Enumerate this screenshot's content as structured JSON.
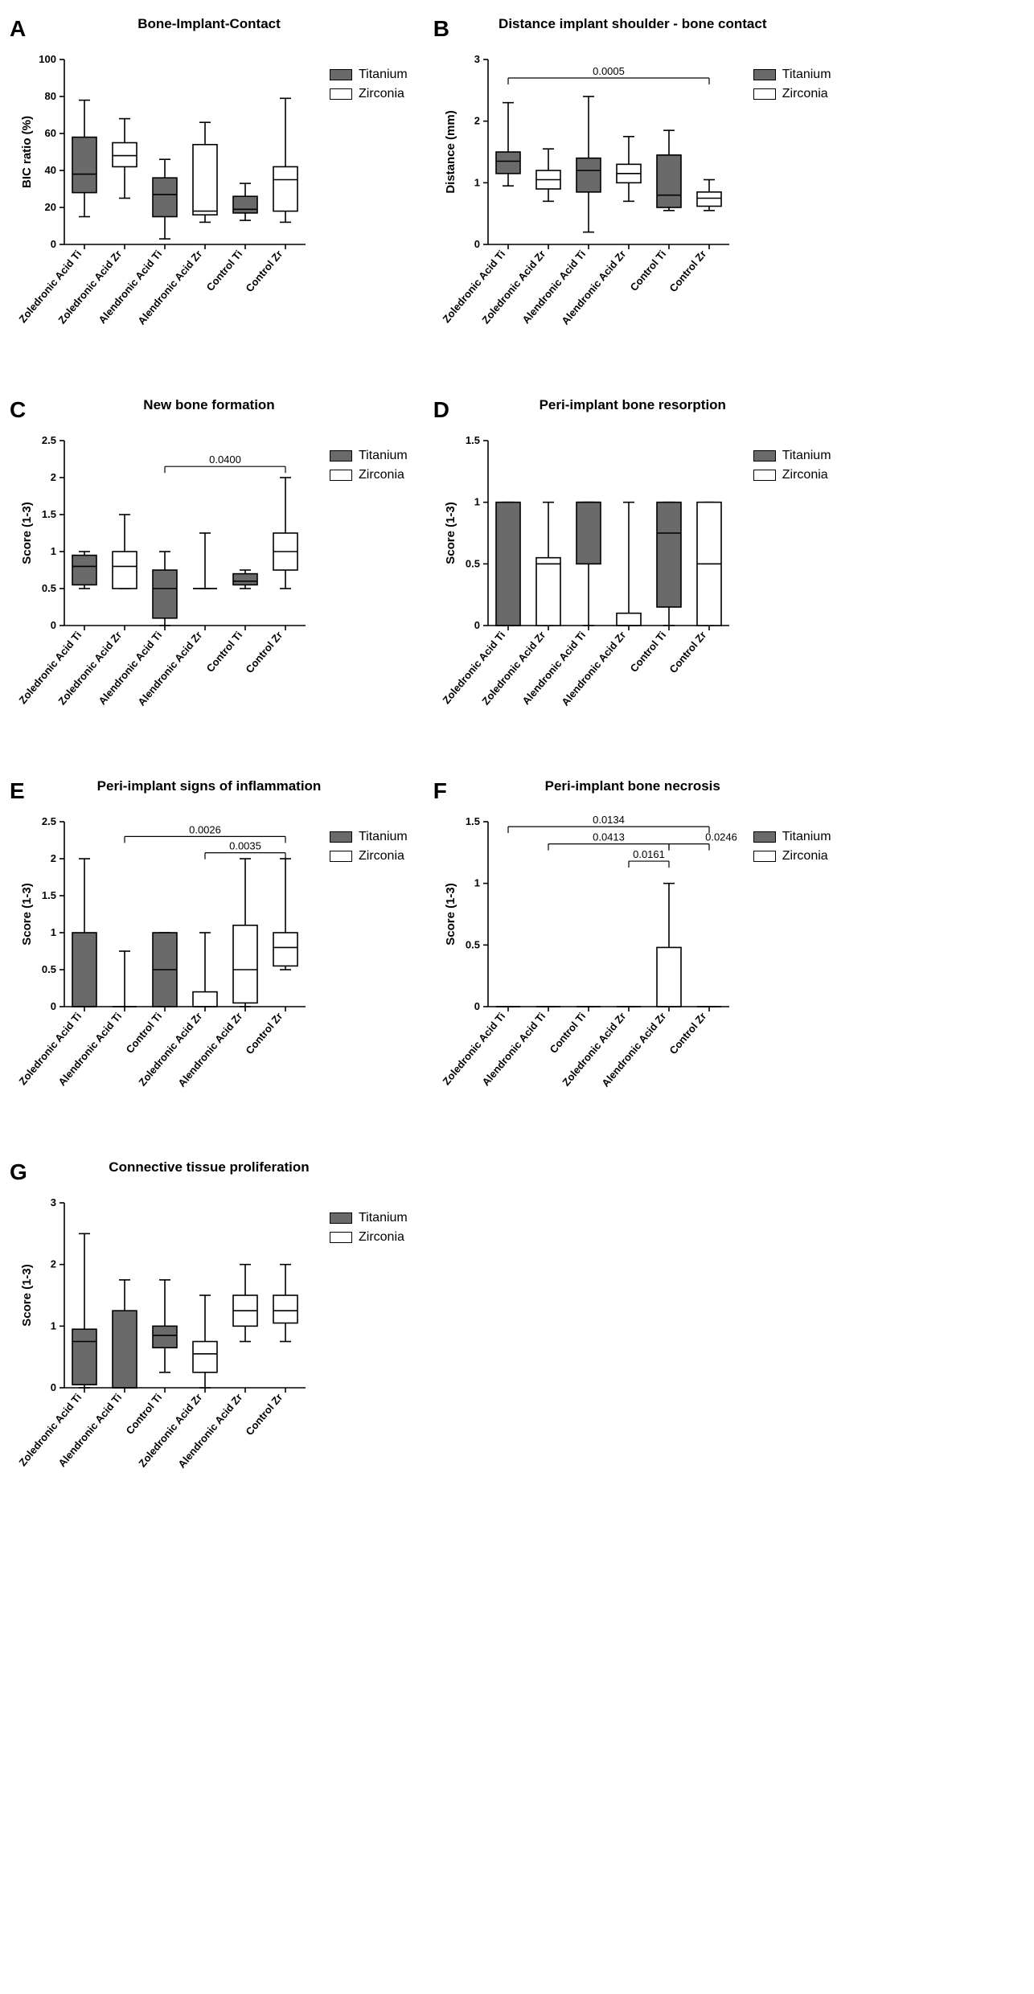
{
  "colors": {
    "titanium": "#6a6a6a",
    "zirconia": "#ffffff",
    "stroke": "#000000",
    "bg": "#ffffff"
  },
  "legend": {
    "titanium": "Titanium",
    "zirconia": "Zirconia"
  },
  "typography": {
    "panel_letter_pt": 28,
    "title_pt": 17,
    "axis_label_pt": 15,
    "tick_pt": 13
  },
  "panels": {
    "A": {
      "letter": "A",
      "title": "Bone-Implant-Contact",
      "ylabel": "BIC ratio (%)",
      "ylim": [
        0,
        100
      ],
      "ytick_step": 20,
      "categories": [
        "Zoledronic Acid Ti",
        "Zoledronic Acid Zr",
        "Alendronic Acid Ti",
        "Alendronic Acid Zr",
        "Control Ti",
        "Control Zr"
      ],
      "fills": [
        "ti",
        "zr",
        "ti",
        "zr",
        "ti",
        "zr"
      ],
      "boxes": [
        {
          "min": 15,
          "q1": 28,
          "median": 38,
          "q3": 58,
          "max": 78
        },
        {
          "min": 25,
          "q1": 42,
          "median": 48,
          "q3": 55,
          "max": 68
        },
        {
          "min": 3,
          "q1": 15,
          "median": 27,
          "q3": 36,
          "max": 46
        },
        {
          "min": 12,
          "q1": 16,
          "median": 18,
          "q3": 54,
          "max": 66
        },
        {
          "min": 13,
          "q1": 17,
          "median": 19,
          "q3": 26,
          "max": 33
        },
        {
          "min": 12,
          "q1": 18,
          "median": 35,
          "q3": 42,
          "max": 79
        }
      ],
      "annotations": []
    },
    "B": {
      "letter": "B",
      "title": "Distance implant shoulder - bone contact",
      "ylabel": "Distance (mm)",
      "ylim": [
        0,
        3
      ],
      "ytick_step": 1,
      "categories": [
        "Zoledronic Acid Ti",
        "Zoledronic Acid Zr",
        "Alendronic Acid Ti",
        "Alendronic Acid Zr",
        "Control Ti",
        "Control Zr"
      ],
      "fills": [
        "ti",
        "zr",
        "ti",
        "zr",
        "ti",
        "zr"
      ],
      "boxes": [
        {
          "min": 0.95,
          "q1": 1.15,
          "median": 1.35,
          "q3": 1.5,
          "max": 2.3
        },
        {
          "min": 0.7,
          "q1": 0.9,
          "median": 1.05,
          "q3": 1.2,
          "max": 1.55
        },
        {
          "min": 0.2,
          "q1": 0.85,
          "median": 1.2,
          "q3": 1.4,
          "max": 2.4
        },
        {
          "min": 0.7,
          "q1": 1.0,
          "median": 1.15,
          "q3": 1.3,
          "max": 1.75
        },
        {
          "min": 0.55,
          "q1": 0.6,
          "median": 0.8,
          "q3": 1.45,
          "max": 1.85
        },
        {
          "min": 0.55,
          "q1": 0.62,
          "median": 0.75,
          "q3": 0.85,
          "max": 1.05
        }
      ],
      "annotations": [
        {
          "i": 0,
          "j": 5,
          "y": 2.7,
          "label": "0.0005"
        }
      ]
    },
    "C": {
      "letter": "C",
      "title": "New bone formation",
      "ylabel": "Score (1-3)",
      "ylim": [
        0,
        2.5
      ],
      "ytick_step": 0.5,
      "categories": [
        "Zoledronic Acid Ti",
        "Zoledronic Acid Zr",
        "Alendronic Acid Ti",
        "Alendronic Acid Zr",
        "Control Ti",
        "Control Zr"
      ],
      "fills": [
        "ti",
        "zr",
        "ti",
        "zr",
        "ti",
        "zr"
      ],
      "boxes": [
        {
          "min": 0.5,
          "q1": 0.55,
          "median": 0.8,
          "q3": 0.95,
          "max": 1.0
        },
        {
          "min": 0.5,
          "q1": 0.5,
          "median": 0.8,
          "q3": 1.0,
          "max": 1.5
        },
        {
          "min": 0.0,
          "q1": 0.1,
          "median": 0.5,
          "q3": 0.75,
          "max": 1.0
        },
        {
          "min": 0.5,
          "q1": 0.5,
          "median": 0.5,
          "q3": 0.5,
          "max": 1.25
        },
        {
          "min": 0.5,
          "q1": 0.55,
          "median": 0.6,
          "q3": 0.7,
          "max": 0.75
        },
        {
          "min": 0.5,
          "q1": 0.75,
          "median": 1.0,
          "q3": 1.25,
          "max": 2.0
        }
      ],
      "annotations": [
        {
          "i": 2,
          "j": 5,
          "y": 2.15,
          "label": "0.0400"
        }
      ]
    },
    "D": {
      "letter": "D",
      "title": "Peri-implant bone resorption",
      "ylabel": "Score (1-3)",
      "ylim": [
        0,
        1.5
      ],
      "ytick_step": 0.5,
      "categories": [
        "Zoledronic Acid Ti",
        "Zoledronic Acid Zr",
        "Alendronic Acid Ti",
        "Alendronic Acid Zr",
        "Control Ti",
        "Control Zr"
      ],
      "fills": [
        "ti",
        "zr",
        "ti",
        "zr",
        "ti",
        "zr"
      ],
      "boxes": [
        {
          "min": 0.0,
          "q1": 0.0,
          "median": 0.0,
          "q3": 1.0,
          "max": 1.0
        },
        {
          "min": 0.0,
          "q1": 0.0,
          "median": 0.5,
          "q3": 0.55,
          "max": 1.0
        },
        {
          "min": 0.0,
          "q1": 0.5,
          "median": 1.0,
          "q3": 1.0,
          "max": 1.0
        },
        {
          "min": 0.0,
          "q1": 0.0,
          "median": 0.0,
          "q3": 0.1,
          "max": 1.0
        },
        {
          "min": 0.0,
          "q1": 0.15,
          "median": 0.75,
          "q3": 1.0,
          "max": 1.0
        },
        {
          "min": 0.0,
          "q1": 0.0,
          "median": 0.5,
          "q3": 1.0,
          "max": 1.0
        }
      ],
      "annotations": []
    },
    "E": {
      "letter": "E",
      "title": "Peri-implant signs of inflammation",
      "ylabel": "Score (1-3)",
      "ylim": [
        0,
        2.5
      ],
      "ytick_step": 0.5,
      "categories": [
        "Zoledronic Acid Ti",
        "Alendronic Acid Ti",
        "Control Ti",
        "Zoledronic Acid Zr",
        "Alendronic Acid Zr",
        "Control Zr"
      ],
      "fills": [
        "ti",
        "ti",
        "ti",
        "zr",
        "zr",
        "zr"
      ],
      "boxes": [
        {
          "min": 0.0,
          "q1": 0.0,
          "median": 0.0,
          "q3": 1.0,
          "max": 2.0
        },
        {
          "min": 0.0,
          "q1": 0.0,
          "median": 0.0,
          "q3": 0.0,
          "max": 0.75
        },
        {
          "min": 0.0,
          "q1": 0.0,
          "median": 0.5,
          "q3": 1.0,
          "max": 1.0
        },
        {
          "min": 0.0,
          "q1": 0.0,
          "median": 0.0,
          "q3": 0.2,
          "max": 1.0
        },
        {
          "min": 0.0,
          "q1": 0.05,
          "median": 0.5,
          "q3": 1.1,
          "max": 2.0
        },
        {
          "min": 0.5,
          "q1": 0.55,
          "median": 0.8,
          "q3": 1.0,
          "max": 2.0
        }
      ],
      "annotations": [
        {
          "i": 1,
          "j": 5,
          "y": 2.3,
          "label": "0.0026"
        },
        {
          "i": 3,
          "j": 5,
          "y": 2.08,
          "label": "0.0035"
        }
      ]
    },
    "F": {
      "letter": "F",
      "title": "Peri-implant bone necrosis",
      "ylabel": "Score (1-3)",
      "ylim": [
        0,
        1.5
      ],
      "ytick_step": 0.5,
      "categories": [
        "Zoledronic Acid Ti",
        "Alendronic Acid Ti",
        "Control Ti",
        "Zoledronic Acid Zr",
        "Alendronic Acid Zr",
        "Control Zr"
      ],
      "fills": [
        "ti",
        "ti",
        "ti",
        "zr",
        "zr",
        "zr"
      ],
      "boxes": [
        {
          "min": 0,
          "q1": 0,
          "median": 0,
          "q3": 0,
          "max": 0
        },
        {
          "min": 0,
          "q1": 0,
          "median": 0,
          "q3": 0,
          "max": 0
        },
        {
          "min": 0,
          "q1": 0,
          "median": 0,
          "q3": 0,
          "max": 0
        },
        {
          "min": 0,
          "q1": 0,
          "median": 0,
          "q3": 0,
          "max": 0
        },
        {
          "min": 0,
          "q1": 0,
          "median": 0,
          "q3": 0.48,
          "max": 1.0
        },
        {
          "min": 0,
          "q1": 0,
          "median": 0,
          "q3": 0,
          "max": 0
        }
      ],
      "annotations": [
        {
          "i": 0,
          "j": 5,
          "y": 1.46,
          "label": "0.0134"
        },
        {
          "i": 1,
          "j": 4,
          "y": 1.32,
          "label": "0.0413"
        },
        {
          "i": 4,
          "j": 5,
          "y": 1.32,
          "label": "0.0246",
          "label_offset_x": 40
        },
        {
          "i": 3,
          "j": 4,
          "y": 1.18,
          "label": "0.0161"
        }
      ]
    },
    "G": {
      "letter": "G",
      "title": "Connective tissue proliferation",
      "ylabel": "Score (1-3)",
      "ylim": [
        0,
        3
      ],
      "ytick_step": 1,
      "categories": [
        "Zoledronic Acid Ti",
        "Alendronic Acid Ti",
        "Control Ti",
        "Zoledronic Acid Zr",
        "Alendronic Acid Zr",
        "Control Zr"
      ],
      "fills": [
        "ti",
        "ti",
        "ti",
        "zr",
        "zr",
        "zr"
      ],
      "boxes": [
        {
          "min": 0.0,
          "q1": 0.05,
          "median": 0.75,
          "q3": 0.95,
          "max": 2.5
        },
        {
          "min": 0.0,
          "q1": 0.0,
          "median": 0.0,
          "q3": 1.25,
          "max": 1.75
        },
        {
          "min": 0.25,
          "q1": 0.65,
          "median": 0.85,
          "q3": 1.0,
          "max": 1.75
        },
        {
          "min": 0.0,
          "q1": 0.25,
          "median": 0.55,
          "q3": 0.75,
          "max": 1.5
        },
        {
          "min": 0.75,
          "q1": 1.0,
          "median": 1.25,
          "q3": 1.5,
          "max": 2.0
        },
        {
          "min": 0.75,
          "q1": 1.05,
          "median": 1.25,
          "q3": 1.5,
          "max": 2.0
        }
      ],
      "annotations": []
    }
  },
  "layout": [
    [
      "A",
      "B"
    ],
    [
      "C",
      "D"
    ],
    [
      "E",
      "F"
    ],
    [
      "G"
    ]
  ]
}
